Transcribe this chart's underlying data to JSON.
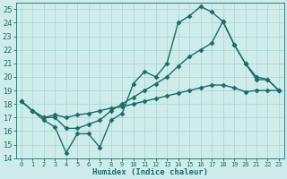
{
  "title": "",
  "xlabel": "Humidex (Indice chaleur)",
  "background_color": "#ceecea",
  "grid_color": "#add8d4",
  "line_color": "#1a6b6b",
  "xlim": [
    -0.5,
    23.5
  ],
  "ylim": [
    14,
    25.5
  ],
  "yticks": [
    14,
    15,
    16,
    17,
    18,
    19,
    20,
    21,
    22,
    23,
    24,
    25
  ],
  "xticks": [
    0,
    1,
    2,
    3,
    4,
    5,
    6,
    7,
    8,
    9,
    10,
    11,
    12,
    13,
    14,
    15,
    16,
    17,
    18,
    19,
    20,
    21,
    22,
    23
  ],
  "series1_x": [
    0,
    1,
    2,
    3,
    4,
    5,
    6,
    7,
    8,
    9,
    10,
    11,
    12,
    13,
    14,
    15,
    16,
    17,
    18,
    19,
    20,
    21,
    22,
    23
  ],
  "series1_y": [
    18.2,
    17.5,
    16.8,
    16.3,
    14.4,
    15.8,
    15.8,
    14.8,
    16.8,
    17.3,
    19.5,
    20.4,
    20.0,
    21.0,
    24.0,
    24.5,
    25.2,
    24.8,
    24.1,
    22.4,
    21.0,
    20.0,
    19.8,
    19.0
  ],
  "series2_x": [
    0,
    1,
    2,
    3,
    4,
    5,
    6,
    7,
    8,
    9,
    10,
    11,
    12,
    13,
    14,
    15,
    16,
    17,
    18,
    19,
    20,
    21,
    22,
    23
  ],
  "series2_y": [
    18.2,
    17.5,
    17.0,
    17.0,
    16.2,
    16.2,
    16.5,
    16.8,
    17.5,
    18.0,
    18.5,
    19.0,
    19.5,
    20.0,
    20.8,
    21.5,
    22.0,
    22.5,
    24.1,
    22.4,
    21.0,
    19.8,
    19.8,
    19.0
  ],
  "series3_x": [
    0,
    1,
    2,
    3,
    4,
    5,
    6,
    7,
    8,
    9,
    10,
    11,
    12,
    13,
    14,
    15,
    16,
    17,
    18,
    19,
    20,
    21,
    22,
    23
  ],
  "series3_y": [
    18.2,
    17.5,
    17.0,
    17.2,
    17.0,
    17.2,
    17.3,
    17.5,
    17.7,
    17.8,
    18.0,
    18.2,
    18.4,
    18.6,
    18.8,
    19.0,
    19.2,
    19.4,
    19.4,
    19.2,
    18.9,
    19.0,
    19.0,
    19.0
  ]
}
